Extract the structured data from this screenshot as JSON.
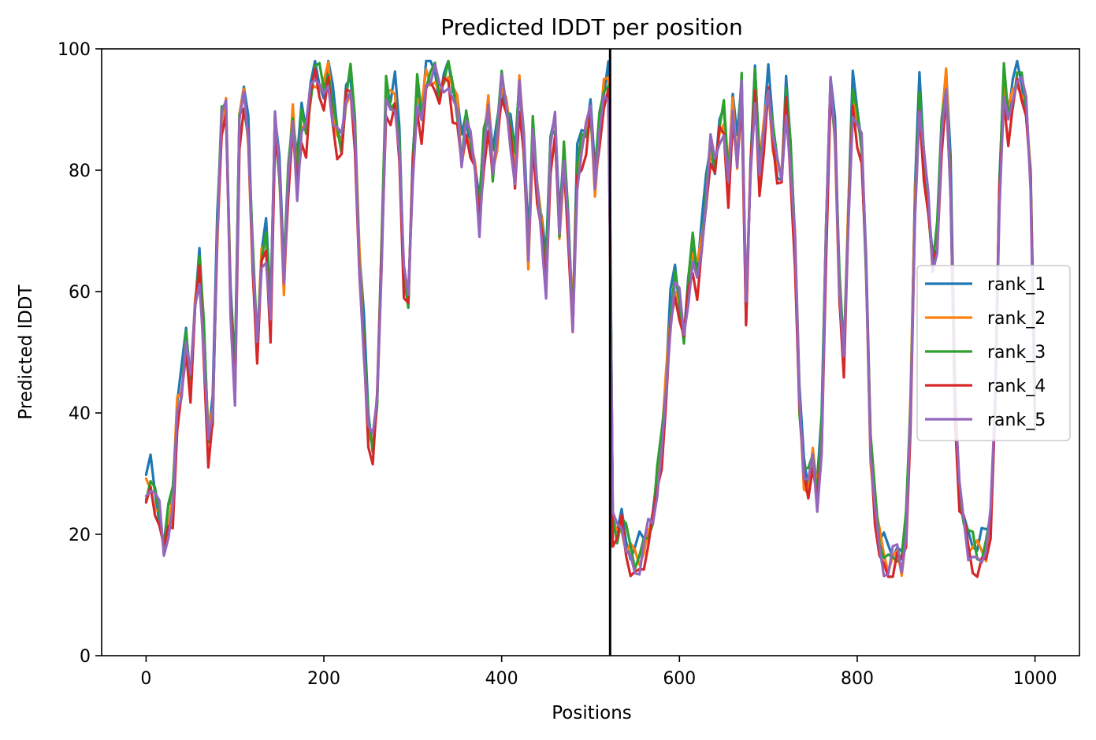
{
  "chart_data": {
    "type": "line",
    "title": "Predicted lDDT per position",
    "xlabel": "Positions",
    "ylabel": "Predicted lDDT",
    "xlim": [
      -50,
      1050
    ],
    "ylim": [
      0,
      100
    ],
    "xticks": [
      0,
      200,
      400,
      600,
      800,
      1000
    ],
    "yticks": [
      0,
      20,
      40,
      60,
      80,
      100
    ],
    "grid": false,
    "legend_position": "center-right",
    "chain_break": 522,
    "colors": {
      "rank_1": "#1f77b4",
      "rank_2": "#ff7f0e",
      "rank_3": "#2ca02c",
      "rank_4": "#d62728",
      "rank_5": "#9467bd",
      "chain_break": "#000000"
    },
    "base_profile": [
      [
        0,
        27
      ],
      [
        5,
        29
      ],
      [
        10,
        26
      ],
      [
        15,
        23
      ],
      [
        20,
        17
      ],
      [
        25,
        22
      ],
      [
        30,
        25
      ],
      [
        35,
        40
      ],
      [
        40,
        44
      ],
      [
        45,
        52
      ],
      [
        50,
        44
      ],
      [
        55,
        57
      ],
      [
        60,
        64
      ],
      [
        65,
        52
      ],
      [
        70,
        35
      ],
      [
        75,
        40
      ],
      [
        80,
        70
      ],
      [
        85,
        88
      ],
      [
        90,
        90
      ],
      [
        95,
        58
      ],
      [
        100,
        44
      ],
      [
        105,
        88
      ],
      [
        110,
        92
      ],
      [
        115,
        86
      ],
      [
        120,
        65
      ],
      [
        125,
        50
      ],
      [
        130,
        65
      ],
      [
        135,
        68
      ],
      [
        140,
        56
      ],
      [
        145,
        88
      ],
      [
        150,
        80
      ],
      [
        155,
        62
      ],
      [
        160,
        78
      ],
      [
        165,
        88
      ],
      [
        170,
        78
      ],
      [
        175,
        88
      ],
      [
        180,
        86
      ],
      [
        185,
        93
      ],
      [
        190,
        96
      ],
      [
        195,
        94
      ],
      [
        200,
        92
      ],
      [
        205,
        96
      ],
      [
        210,
        90
      ],
      [
        215,
        86
      ],
      [
        220,
        84
      ],
      [
        225,
        92
      ],
      [
        230,
        94
      ],
      [
        235,
        86
      ],
      [
        240,
        64
      ],
      [
        245,
        52
      ],
      [
        250,
        38
      ],
      [
        255,
        34
      ],
      [
        260,
        42
      ],
      [
        265,
        66
      ],
      [
        270,
        92
      ],
      [
        275,
        90
      ],
      [
        280,
        92
      ],
      [
        285,
        84
      ],
      [
        290,
        62
      ],
      [
        295,
        58
      ],
      [
        300,
        80
      ],
      [
        305,
        92
      ],
      [
        310,
        88
      ],
      [
        315,
        95
      ],
      [
        320,
        96
      ],
      [
        325,
        96
      ],
      [
        330,
        92
      ],
      [
        335,
        94
      ],
      [
        340,
        96
      ],
      [
        345,
        92
      ],
      [
        350,
        90
      ],
      [
        355,
        82
      ],
      [
        360,
        88
      ],
      [
        365,
        84
      ],
      [
        370,
        80
      ],
      [
        375,
        72
      ],
      [
        380,
        84
      ],
      [
        385,
        90
      ],
      [
        390,
        80
      ],
      [
        395,
        86
      ],
      [
        400,
        94
      ],
      [
        405,
        90
      ],
      [
        410,
        86
      ],
      [
        415,
        80
      ],
      [
        420,
        94
      ],
      [
        425,
        84
      ],
      [
        430,
        66
      ],
      [
        435,
        86
      ],
      [
        440,
        76
      ],
      [
        445,
        70
      ],
      [
        450,
        62
      ],
      [
        455,
        84
      ],
      [
        460,
        88
      ],
      [
        465,
        70
      ],
      [
        470,
        82
      ],
      [
        475,
        70
      ],
      [
        480,
        54
      ],
      [
        485,
        80
      ],
      [
        490,
        84
      ],
      [
        495,
        86
      ],
      [
        500,
        90
      ],
      [
        505,
        78
      ],
      [
        510,
        86
      ],
      [
        515,
        92
      ],
      [
        520,
        94
      ],
      [
        522,
        70
      ],
      [
        525,
        22
      ],
      [
        530,
        20
      ],
      [
        535,
        22
      ],
      [
        540,
        18
      ],
      [
        545,
        16
      ],
      [
        550,
        15
      ],
      [
        555,
        16
      ],
      [
        560,
        18
      ],
      [
        565,
        20
      ],
      [
        570,
        22
      ],
      [
        575,
        28
      ],
      [
        580,
        34
      ],
      [
        585,
        44
      ],
      [
        590,
        56
      ],
      [
        595,
        62
      ],
      [
        600,
        58
      ],
      [
        605,
        52
      ],
      [
        610,
        60
      ],
      [
        615,
        66
      ],
      [
        620,
        62
      ],
      [
        625,
        68
      ],
      [
        630,
        76
      ],
      [
        635,
        84
      ],
      [
        640,
        80
      ],
      [
        645,
        86
      ],
      [
        650,
        88
      ],
      [
        655,
        78
      ],
      [
        660,
        90
      ],
      [
        665,
        82
      ],
      [
        670,
        94
      ],
      [
        675,
        56
      ],
      [
        680,
        80
      ],
      [
        685,
        94
      ],
      [
        690,
        80
      ],
      [
        695,
        86
      ],
      [
        700,
        94
      ],
      [
        705,
        86
      ],
      [
        710,
        80
      ],
      [
        715,
        78
      ],
      [
        720,
        92
      ],
      [
        725,
        82
      ],
      [
        730,
        68
      ],
      [
        735,
        42
      ],
      [
        740,
        30
      ],
      [
        745,
        28
      ],
      [
        750,
        32
      ],
      [
        755,
        26
      ],
      [
        760,
        36
      ],
      [
        765,
        70
      ],
      [
        770,
        94
      ],
      [
        775,
        86
      ],
      [
        780,
        60
      ],
      [
        785,
        48
      ],
      [
        790,
        72
      ],
      [
        795,
        92
      ],
      [
        800,
        88
      ],
      [
        805,
        84
      ],
      [
        810,
        64
      ],
      [
        815,
        34
      ],
      [
        820,
        24
      ],
      [
        825,
        18
      ],
      [
        830,
        16
      ],
      [
        835,
        15
      ],
      [
        840,
        16
      ],
      [
        845,
        17
      ],
      [
        850,
        15
      ],
      [
        855,
        20
      ],
      [
        860,
        40
      ],
      [
        865,
        74
      ],
      [
        870,
        92
      ],
      [
        875,
        82
      ],
      [
        880,
        74
      ],
      [
        885,
        64
      ],
      [
        890,
        68
      ],
      [
        895,
        86
      ],
      [
        900,
        94
      ],
      [
        905,
        78
      ],
      [
        910,
        42
      ],
      [
        915,
        26
      ],
      [
        920,
        22
      ],
      [
        925,
        18
      ],
      [
        930,
        17
      ],
      [
        935,
        16
      ],
      [
        940,
        17
      ],
      [
        945,
        18
      ],
      [
        950,
        22
      ],
      [
        955,
        40
      ],
      [
        960,
        76
      ],
      [
        965,
        94
      ],
      [
        970,
        88
      ],
      [
        975,
        92
      ],
      [
        980,
        96
      ],
      [
        985,
        94
      ],
      [
        990,
        90
      ],
      [
        995,
        78
      ],
      [
        1000,
        40
      ]
    ],
    "series": [
      {
        "name": "rank_1",
        "offset": 1.6,
        "values": null
      },
      {
        "name": "rank_2",
        "offset": 0.2,
        "values": null
      },
      {
        "name": "rank_3",
        "offset": 0.9,
        "values": null
      },
      {
        "name": "rank_4",
        "offset": -1.6,
        "values": null
      },
      {
        "name": "rank_5",
        "offset": -0.3,
        "values": null
      }
    ]
  }
}
